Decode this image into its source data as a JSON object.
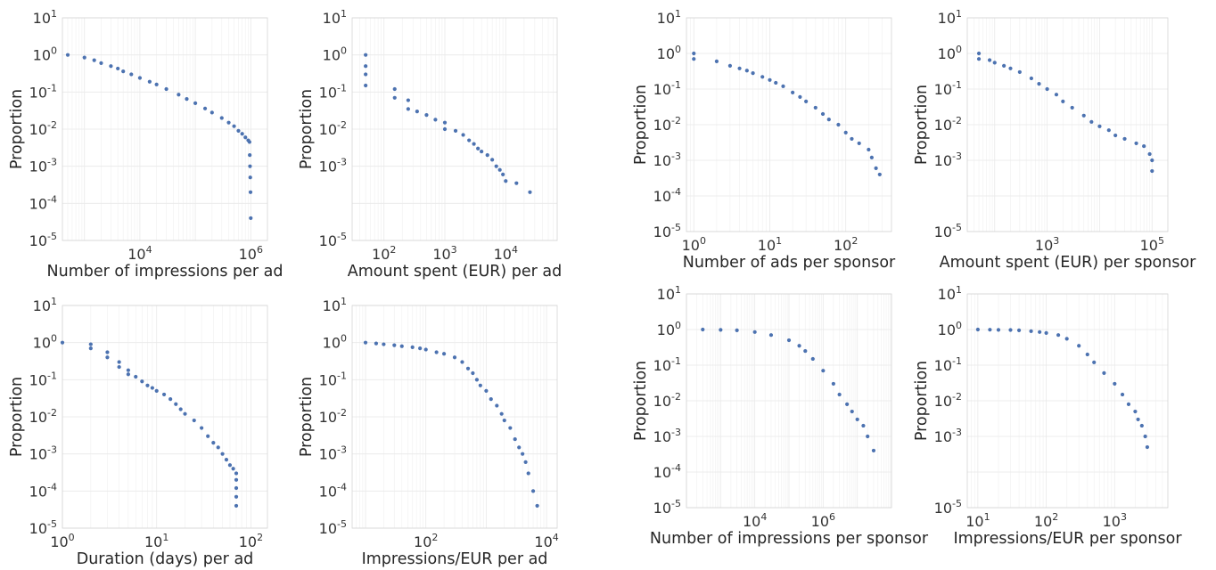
{
  "chart_data": [
    {
      "type": "scatter",
      "xlabel": "Number of impressions per ad",
      "ylabel": "Proportion",
      "x_scale": "log",
      "y_scale": "log",
      "xlim": [
        400,
        2000000
      ],
      "ylim": [
        1e-05,
        10
      ],
      "xticks": [
        10000,
        1000000
      ],
      "yticks": [
        1e-05,
        0.0001,
        0.001,
        0.01,
        0.1,
        1,
        10
      ],
      "grid": true,
      "color": "#4c72b0",
      "points": [
        [
          500,
          1
        ],
        [
          1000,
          0.85
        ],
        [
          1500,
          0.72
        ],
        [
          2000,
          0.6
        ],
        [
          3000,
          0.5
        ],
        [
          4000,
          0.43
        ],
        [
          5000,
          0.36
        ],
        [
          7000,
          0.3
        ],
        [
          10000,
          0.24
        ],
        [
          15000,
          0.19
        ],
        [
          20000,
          0.16
        ],
        [
          30000,
          0.12
        ],
        [
          50000,
          0.085
        ],
        [
          70000,
          0.065
        ],
        [
          100000,
          0.05
        ],
        [
          150000,
          0.036
        ],
        [
          200000,
          0.028
        ],
        [
          300000,
          0.02
        ],
        [
          400000,
          0.015
        ],
        [
          500000,
          0.012
        ],
        [
          600000,
          0.009
        ],
        [
          700000,
          0.0075
        ],
        [
          800000,
          0.006
        ],
        [
          900000,
          0.005
        ],
        [
          950000,
          0.0045
        ],
        [
          960000,
          0.002
        ],
        [
          970000,
          0.001
        ],
        [
          980000,
          0.0005
        ],
        [
          990000,
          0.0002
        ],
        [
          1000000,
          4e-05
        ]
      ]
    },
    {
      "type": "scatter",
      "xlabel": "Amount spent (EUR) per ad",
      "ylabel": "Proportion",
      "x_scale": "log",
      "y_scale": "log",
      "xlim": [
        30,
        70000
      ],
      "ylim": [
        1e-05,
        10
      ],
      "xticks": [
        100,
        1000,
        10000
      ],
      "yticks": [
        1e-05,
        0.001,
        0.01,
        0.1,
        1,
        10
      ],
      "grid": true,
      "color": "#4c72b0",
      "points": [
        [
          50,
          1
        ],
        [
          50,
          0.5
        ],
        [
          50,
          0.3
        ],
        [
          50,
          0.15
        ],
        [
          150,
          0.12
        ],
        [
          150,
          0.07
        ],
        [
          250,
          0.06
        ],
        [
          250,
          0.035
        ],
        [
          350,
          0.03
        ],
        [
          500,
          0.024
        ],
        [
          700,
          0.018
        ],
        [
          1000,
          0.015
        ],
        [
          1000,
          0.01
        ],
        [
          1500,
          0.009
        ],
        [
          2000,
          0.007
        ],
        [
          2500,
          0.005
        ],
        [
          3000,
          0.004
        ],
        [
          3500,
          0.003
        ],
        [
          4000,
          0.0025
        ],
        [
          5000,
          0.002
        ],
        [
          6000,
          0.0015
        ],
        [
          7000,
          0.001
        ],
        [
          8000,
          0.0008
        ],
        [
          9000,
          0.0006
        ],
        [
          10000,
          0.0004
        ],
        [
          15000,
          0.00035
        ],
        [
          25000,
          0.0002
        ]
      ]
    },
    {
      "type": "scatter",
      "xlabel": "Number of ads per sponsor",
      "ylabel": "Proportion",
      "x_scale": "log",
      "y_scale": "log",
      "xlim": [
        0.8,
        400
      ],
      "ylim": [
        1e-05,
        10
      ],
      "xticks": [
        1,
        10,
        100
      ],
      "yticks": [
        1e-05,
        0.0001,
        0.001,
        0.01,
        0.1,
        1,
        10
      ],
      "grid": true,
      "color": "#4c72b0",
      "points": [
        [
          1,
          1
        ],
        [
          1,
          0.7
        ],
        [
          2,
          0.6
        ],
        [
          3,
          0.45
        ],
        [
          4,
          0.38
        ],
        [
          5,
          0.33
        ],
        [
          6,
          0.28
        ],
        [
          8,
          0.22
        ],
        [
          10,
          0.18
        ],
        [
          12,
          0.15
        ],
        [
          15,
          0.12
        ],
        [
          20,
          0.08
        ],
        [
          25,
          0.06
        ],
        [
          30,
          0.045
        ],
        [
          40,
          0.03
        ],
        [
          50,
          0.02
        ],
        [
          60,
          0.014
        ],
        [
          80,
          0.01
        ],
        [
          100,
          0.006
        ],
        [
          120,
          0.004
        ],
        [
          150,
          0.003
        ],
        [
          200,
          0.002
        ],
        [
          220,
          0.0012
        ],
        [
          250,
          0.0006
        ],
        [
          280,
          0.0004
        ]
      ]
    },
    {
      "type": "scatter",
      "xlabel": "Amount spent (EUR) per sponsor",
      "ylabel": "Proportion",
      "x_scale": "log",
      "y_scale": "log",
      "xlim": [
        30,
        200000
      ],
      "ylim": [
        1e-05,
        10
      ],
      "xticks": [
        1000,
        100000
      ],
      "yticks": [
        1e-05,
        0.001,
        0.01,
        0.1,
        1,
        10
      ],
      "grid": true,
      "color": "#4c72b0",
      "points": [
        [
          50,
          1
        ],
        [
          50,
          0.7
        ],
        [
          80,
          0.65
        ],
        [
          100,
          0.55
        ],
        [
          150,
          0.45
        ],
        [
          200,
          0.38
        ],
        [
          300,
          0.3
        ],
        [
          500,
          0.2
        ],
        [
          700,
          0.14
        ],
        [
          1000,
          0.1
        ],
        [
          1500,
          0.07
        ],
        [
          2000,
          0.045
        ],
        [
          3000,
          0.03
        ],
        [
          5000,
          0.018
        ],
        [
          7000,
          0.012
        ],
        [
          10000,
          0.009
        ],
        [
          15000,
          0.007
        ],
        [
          20000,
          0.005
        ],
        [
          30000,
          0.004
        ],
        [
          50000,
          0.003
        ],
        [
          70000,
          0.0025
        ],
        [
          90000,
          0.0015
        ],
        [
          100000,
          0.001
        ],
        [
          100000,
          0.0005
        ]
      ]
    },
    {
      "type": "scatter",
      "xlabel": "Duration (days) per ad",
      "ylabel": "Proportion",
      "x_scale": "log",
      "y_scale": "log",
      "xlim": [
        1,
        150
      ],
      "ylim": [
        1e-05,
        10
      ],
      "xticks": [
        1,
        10,
        100
      ],
      "yticks": [
        1e-05,
        0.0001,
        0.001,
        0.01,
        0.1,
        1,
        10
      ],
      "grid": true,
      "color": "#4c72b0",
      "points": [
        [
          1,
          1
        ],
        [
          2,
          0.9
        ],
        [
          2,
          0.7
        ],
        [
          3,
          0.55
        ],
        [
          3,
          0.4
        ],
        [
          4,
          0.3
        ],
        [
          4,
          0.22
        ],
        [
          5,
          0.18
        ],
        [
          5,
          0.14
        ],
        [
          6,
          0.12
        ],
        [
          7,
          0.09
        ],
        [
          8,
          0.07
        ],
        [
          9,
          0.06
        ],
        [
          10,
          0.05
        ],
        [
          12,
          0.04
        ],
        [
          14,
          0.03
        ],
        [
          16,
          0.022
        ],
        [
          18,
          0.016
        ],
        [
          20,
          0.012
        ],
        [
          25,
          0.008
        ],
        [
          30,
          0.005
        ],
        [
          35,
          0.003
        ],
        [
          40,
          0.002
        ],
        [
          45,
          0.0015
        ],
        [
          50,
          0.001
        ],
        [
          55,
          0.0007
        ],
        [
          60,
          0.0005
        ],
        [
          65,
          0.0004
        ],
        [
          70,
          0.0003
        ],
        [
          70,
          0.0002
        ],
        [
          70,
          0.00012
        ],
        [
          70,
          7e-05
        ],
        [
          70,
          4e-05
        ]
      ]
    },
    {
      "type": "scatter",
      "xlabel": "Impressions/EUR per ad",
      "ylabel": "Proportion",
      "x_scale": "log",
      "y_scale": "log",
      "xlim": [
        6,
        15000
      ],
      "ylim": [
        1e-05,
        10
      ],
      "xticks": [
        100,
        10000
      ],
      "yticks": [
        1e-05,
        0.0001,
        0.001,
        0.01,
        0.1,
        1,
        10
      ],
      "grid": true,
      "color": "#4c72b0",
      "points": [
        [
          10,
          1
        ],
        [
          15,
          0.95
        ],
        [
          20,
          0.9
        ],
        [
          30,
          0.85
        ],
        [
          40,
          0.8
        ],
        [
          60,
          0.75
        ],
        [
          80,
          0.7
        ],
        [
          100,
          0.65
        ],
        [
          150,
          0.55
        ],
        [
          200,
          0.5
        ],
        [
          300,
          0.4
        ],
        [
          400,
          0.3
        ],
        [
          500,
          0.2
        ],
        [
          600,
          0.15
        ],
        [
          700,
          0.1
        ],
        [
          800,
          0.07
        ],
        [
          1000,
          0.05
        ],
        [
          1200,
          0.03
        ],
        [
          1500,
          0.02
        ],
        [
          1800,
          0.012
        ],
        [
          2000,
          0.008
        ],
        [
          2500,
          0.005
        ],
        [
          3000,
          0.0025
        ],
        [
          3500,
          0.0015
        ],
        [
          4000,
          0.001
        ],
        [
          4500,
          0.0006
        ],
        [
          5000,
          0.0003
        ],
        [
          6000,
          0.0001
        ],
        [
          7000,
          4e-05
        ]
      ]
    },
    {
      "type": "scatter",
      "xlabel": "Number of impressions per sponsor",
      "ylabel": "Proportion",
      "x_scale": "log",
      "y_scale": "log",
      "xlim": [
        100,
        100000000
      ],
      "ylim": [
        1e-05,
        10
      ],
      "xticks": [
        10000,
        1000000
      ],
      "yticks": [
        1e-05,
        0.0001,
        0.001,
        0.01,
        0.1,
        1,
        10
      ],
      "grid": true,
      "color": "#4c72b0",
      "points": [
        [
          300,
          1
        ],
        [
          1000,
          0.98
        ],
        [
          3000,
          0.95
        ],
        [
          10000,
          0.85
        ],
        [
          30000,
          0.7
        ],
        [
          100000,
          0.5
        ],
        [
          200000,
          0.35
        ],
        [
          300000,
          0.25
        ],
        [
          500000,
          0.15
        ],
        [
          1000000,
          0.07
        ],
        [
          2000000,
          0.03
        ],
        [
          3000000,
          0.015
        ],
        [
          5000000,
          0.008
        ],
        [
          7000000,
          0.005
        ],
        [
          10000000,
          0.003
        ],
        [
          15000000,
          0.002
        ],
        [
          20000000,
          0.001
        ],
        [
          30000000,
          0.0004
        ]
      ]
    },
    {
      "type": "scatter",
      "xlabel": "Impressions/EUR per sponsor",
      "ylabel": "Proportion",
      "x_scale": "log",
      "y_scale": "log",
      "xlim": [
        7,
        6000
      ],
      "ylim": [
        1e-05,
        10
      ],
      "xticks": [
        10,
        100,
        1000
      ],
      "yticks": [
        1e-05,
        0.001,
        0.01,
        0.1,
        1,
        10
      ],
      "grid": true,
      "color": "#4c72b0",
      "points": [
        [
          10,
          1
        ],
        [
          15,
          0.99
        ],
        [
          20,
          0.98
        ],
        [
          30,
          0.97
        ],
        [
          40,
          0.95
        ],
        [
          60,
          0.9
        ],
        [
          80,
          0.85
        ],
        [
          100,
          0.8
        ],
        [
          150,
          0.7
        ],
        [
          200,
          0.55
        ],
        [
          300,
          0.35
        ],
        [
          400,
          0.2
        ],
        [
          500,
          0.12
        ],
        [
          700,
          0.06
        ],
        [
          1000,
          0.03
        ],
        [
          1300,
          0.015
        ],
        [
          1600,
          0.008
        ],
        [
          2000,
          0.005
        ],
        [
          2200,
          0.003
        ],
        [
          2500,
          0.002
        ],
        [
          2800,
          0.001
        ],
        [
          3000,
          0.0005
        ]
      ]
    }
  ]
}
